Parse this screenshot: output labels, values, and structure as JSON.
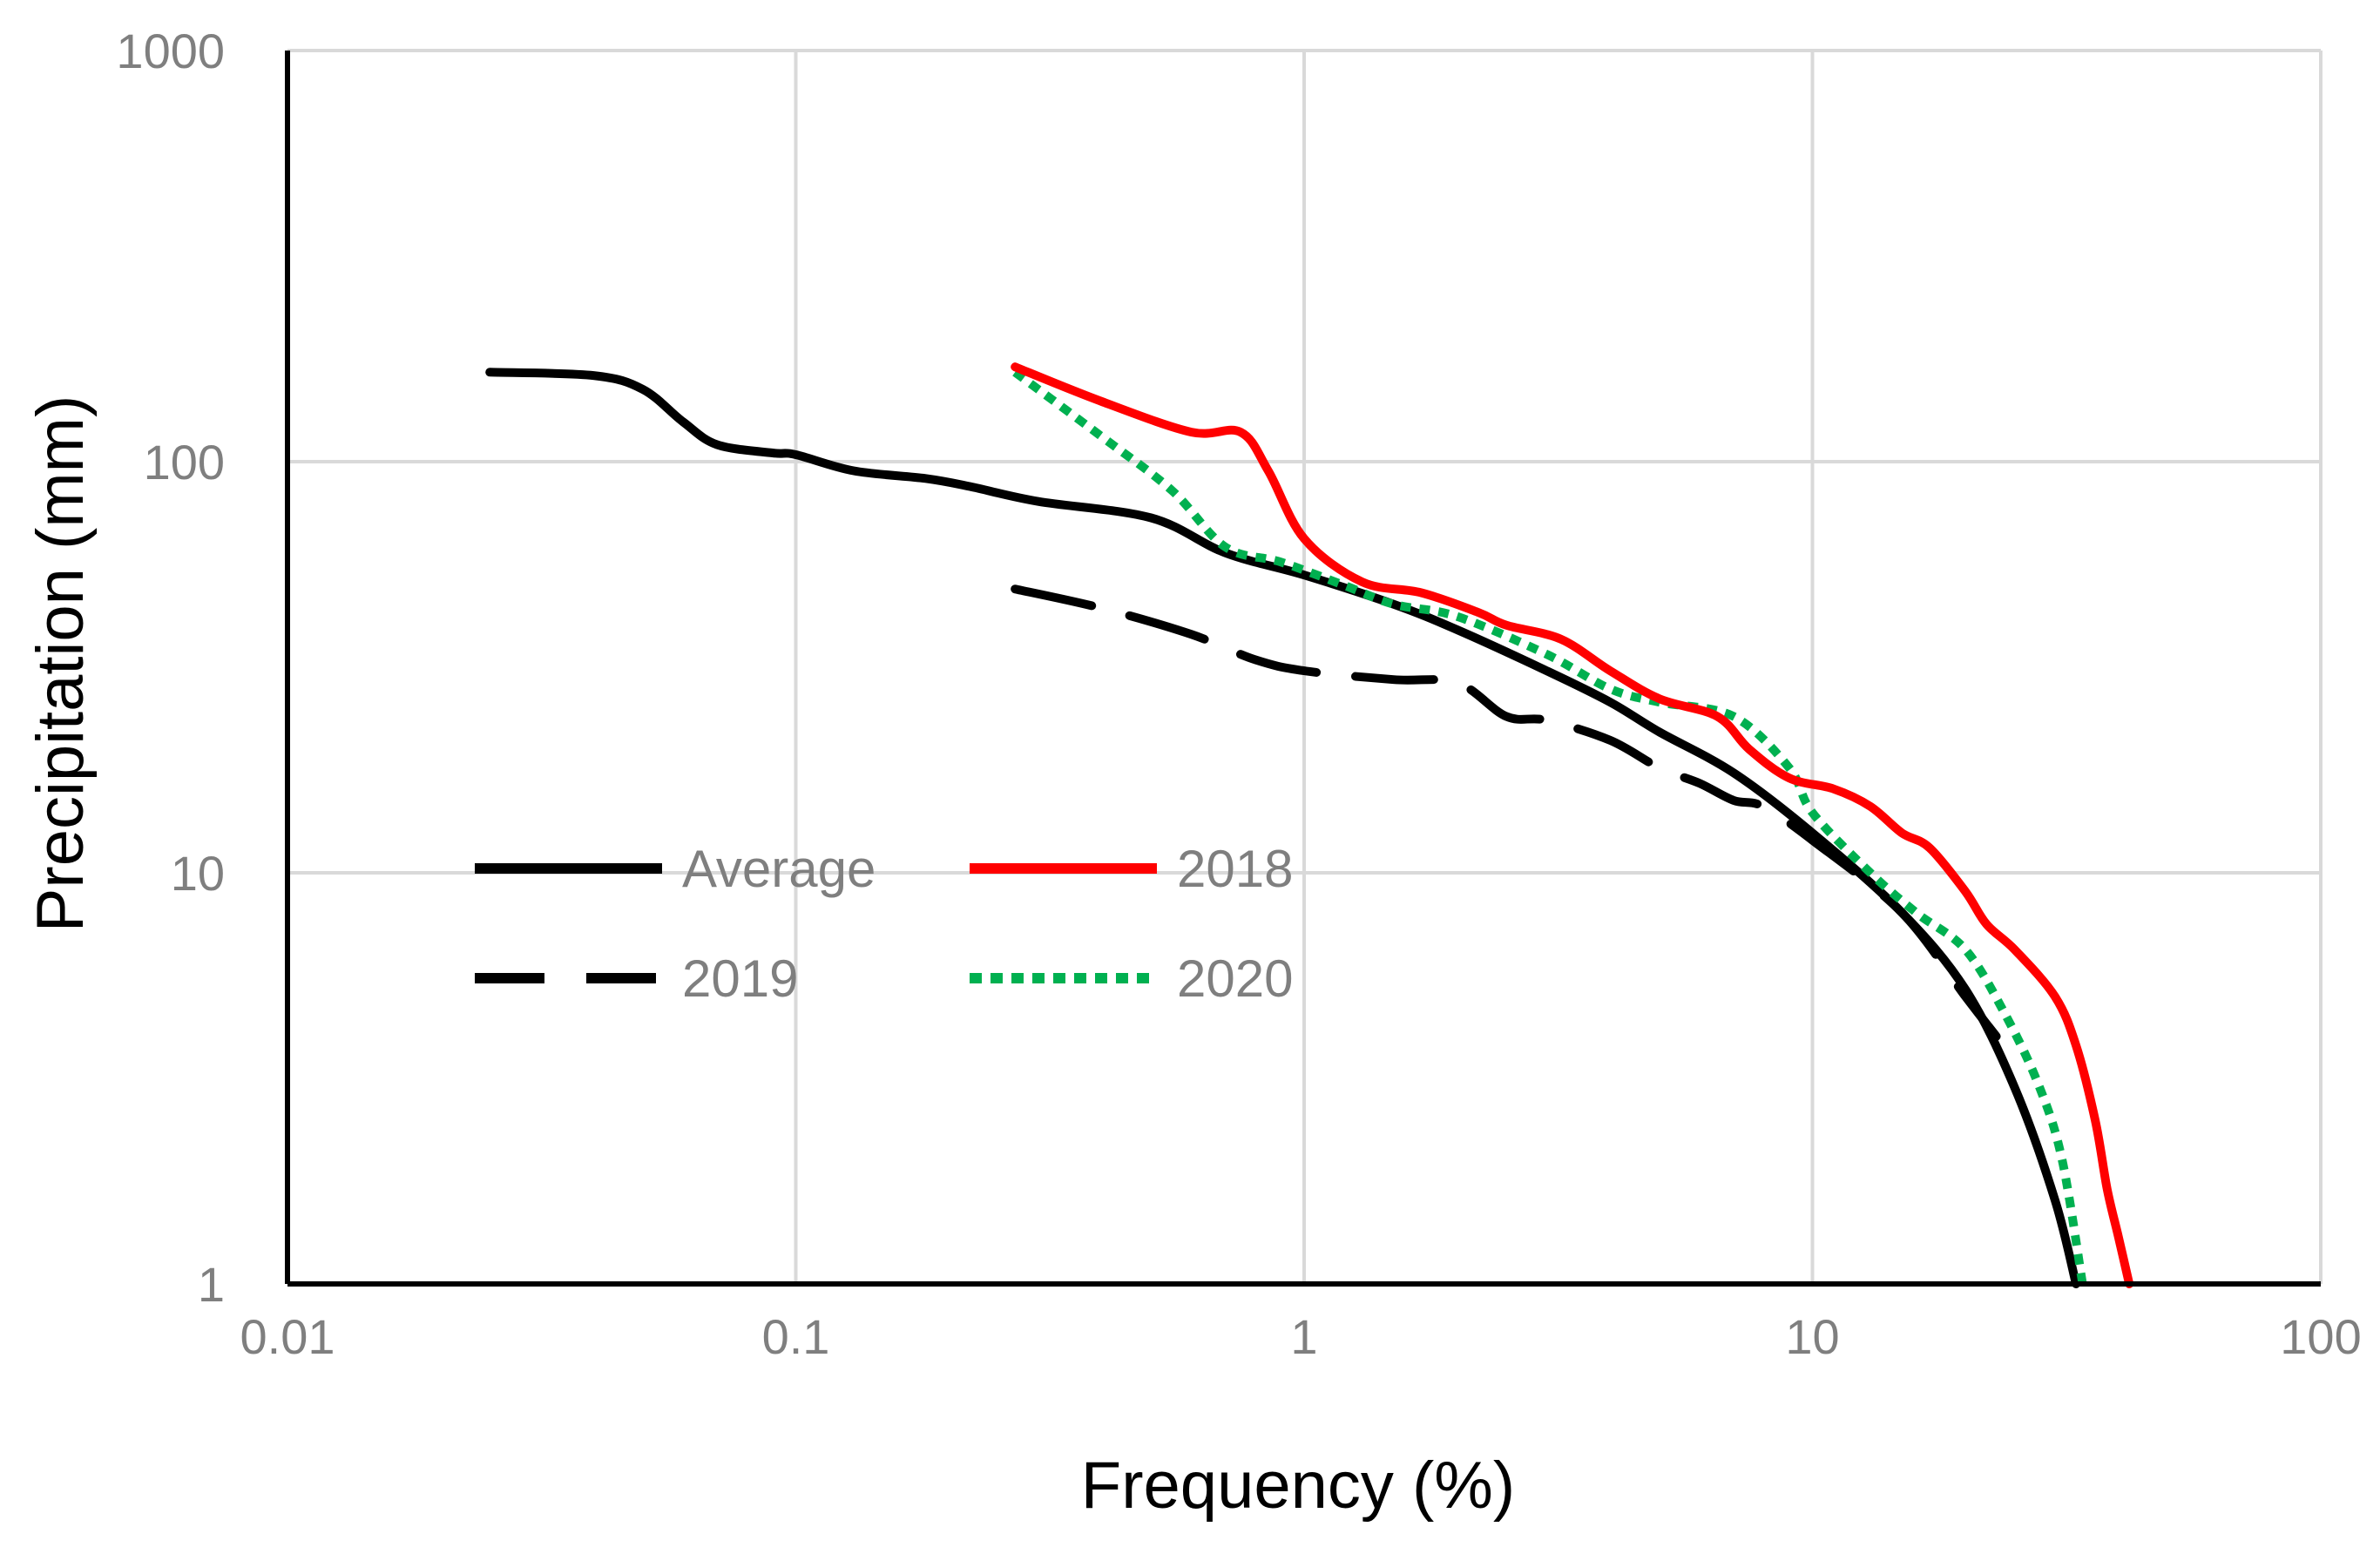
{
  "chart_data": {
    "type": "line",
    "title": "",
    "xlabel": "Frequency (%)",
    "ylabel": "Precipitation (mm)",
    "xscale": "log",
    "yscale": "log",
    "xlim": [
      0.01,
      100
    ],
    "ylim": [
      1,
      1000
    ],
    "x_ticks": [
      0.01,
      0.1,
      1,
      10,
      100
    ],
    "x_tick_labels": [
      "0.01",
      "0.1",
      "1",
      "10",
      "100"
    ],
    "y_ticks": [
      1,
      10,
      100,
      1000
    ],
    "y_tick_labels": [
      "1",
      "10",
      "100",
      "1000"
    ],
    "grid": true,
    "legend_placement": "center-left",
    "series": [
      {
        "name": "Average",
        "color": "#000000",
        "dash": "solid",
        "points": [
          [
            0.025,
            165
          ],
          [
            0.04,
            162
          ],
          [
            0.05,
            150
          ],
          [
            0.06,
            125
          ],
          [
            0.07,
            110
          ],
          [
            0.09,
            105
          ],
          [
            0.1,
            104
          ],
          [
            0.13,
            95
          ],
          [
            0.18,
            91
          ],
          [
            0.22,
            87
          ],
          [
            0.3,
            80
          ],
          [
            0.5,
            73
          ],
          [
            0.7,
            60
          ],
          [
            1.0,
            53
          ],
          [
            1.5,
            45
          ],
          [
            2.0,
            39
          ],
          [
            3.0,
            31
          ],
          [
            4.0,
            26
          ],
          [
            5.0,
            22
          ],
          [
            7.0,
            17.5
          ],
          [
            10.0,
            12.5
          ],
          [
            15.0,
            8.0
          ],
          [
            20.0,
            5.2
          ],
          [
            25.0,
            3.0
          ],
          [
            30.0,
            1.6
          ],
          [
            33.0,
            1.0
          ]
        ]
      },
      {
        "name": "2018",
        "color": "#ff0000",
        "dash": "solid",
        "points": [
          [
            0.27,
            170
          ],
          [
            0.4,
            140
          ],
          [
            0.6,
            118
          ],
          [
            0.75,
            118
          ],
          [
            0.85,
            95
          ],
          [
            1.0,
            65
          ],
          [
            1.3,
            51
          ],
          [
            1.7,
            48
          ],
          [
            2.2,
            43
          ],
          [
            2.5,
            40
          ],
          [
            3.2,
            37
          ],
          [
            4.0,
            31
          ],
          [
            5.0,
            26.5
          ],
          [
            6.5,
            24
          ],
          [
            7.5,
            20
          ],
          [
            9.0,
            17
          ],
          [
            11.0,
            16
          ],
          [
            13.0,
            14.5
          ],
          [
            15.0,
            12.5
          ],
          [
            17.0,
            11.5
          ],
          [
            20.0,
            9
          ],
          [
            22.0,
            7.5
          ],
          [
            25.0,
            6.5
          ],
          [
            30.0,
            5.0
          ],
          [
            33.0,
            3.8
          ],
          [
            36.0,
            2.5
          ],
          [
            38.0,
            1.7
          ],
          [
            40.0,
            1.3
          ],
          [
            42.0,
            1.0
          ]
        ]
      },
      {
        "name": "2019",
        "color": "#000000",
        "dash": "long-dash",
        "points": [
          [
            0.27,
            49
          ],
          [
            0.4,
            44
          ],
          [
            0.6,
            38
          ],
          [
            0.8,
            33
          ],
          [
            1.0,
            31
          ],
          [
            1.5,
            29.5
          ],
          [
            2.0,
            29
          ],
          [
            2.5,
            24
          ],
          [
            3.0,
            23.5
          ],
          [
            4.0,
            21
          ],
          [
            5.0,
            18
          ],
          [
            6.0,
            16.5
          ],
          [
            7.0,
            15
          ],
          [
            8.0,
            14.5
          ],
          [
            10.0,
            12
          ],
          [
            15.0,
            8
          ],
          [
            20.0,
            5
          ],
          [
            23.0,
            4
          ]
        ]
      },
      {
        "name": "2020",
        "color": "#00b050",
        "dash": "dotted",
        "points": [
          [
            0.27,
            165
          ],
          [
            0.4,
            115
          ],
          [
            0.55,
            85
          ],
          [
            0.7,
            62
          ],
          [
            0.9,
            57
          ],
          [
            1.2,
            50
          ],
          [
            1.5,
            45
          ],
          [
            2.0,
            42
          ],
          [
            3.0,
            34
          ],
          [
            4.0,
            28
          ],
          [
            5.0,
            26
          ],
          [
            7.0,
            24
          ],
          [
            9.0,
            18
          ],
          [
            10.0,
            14
          ],
          [
            13.0,
            10
          ],
          [
            16.0,
            8.0
          ],
          [
            20.0,
            6.5
          ],
          [
            24.0,
            4.5
          ],
          [
            28.0,
            3.0
          ],
          [
            31.0,
            2.0
          ],
          [
            34.0,
            1.0
          ]
        ]
      }
    ]
  }
}
